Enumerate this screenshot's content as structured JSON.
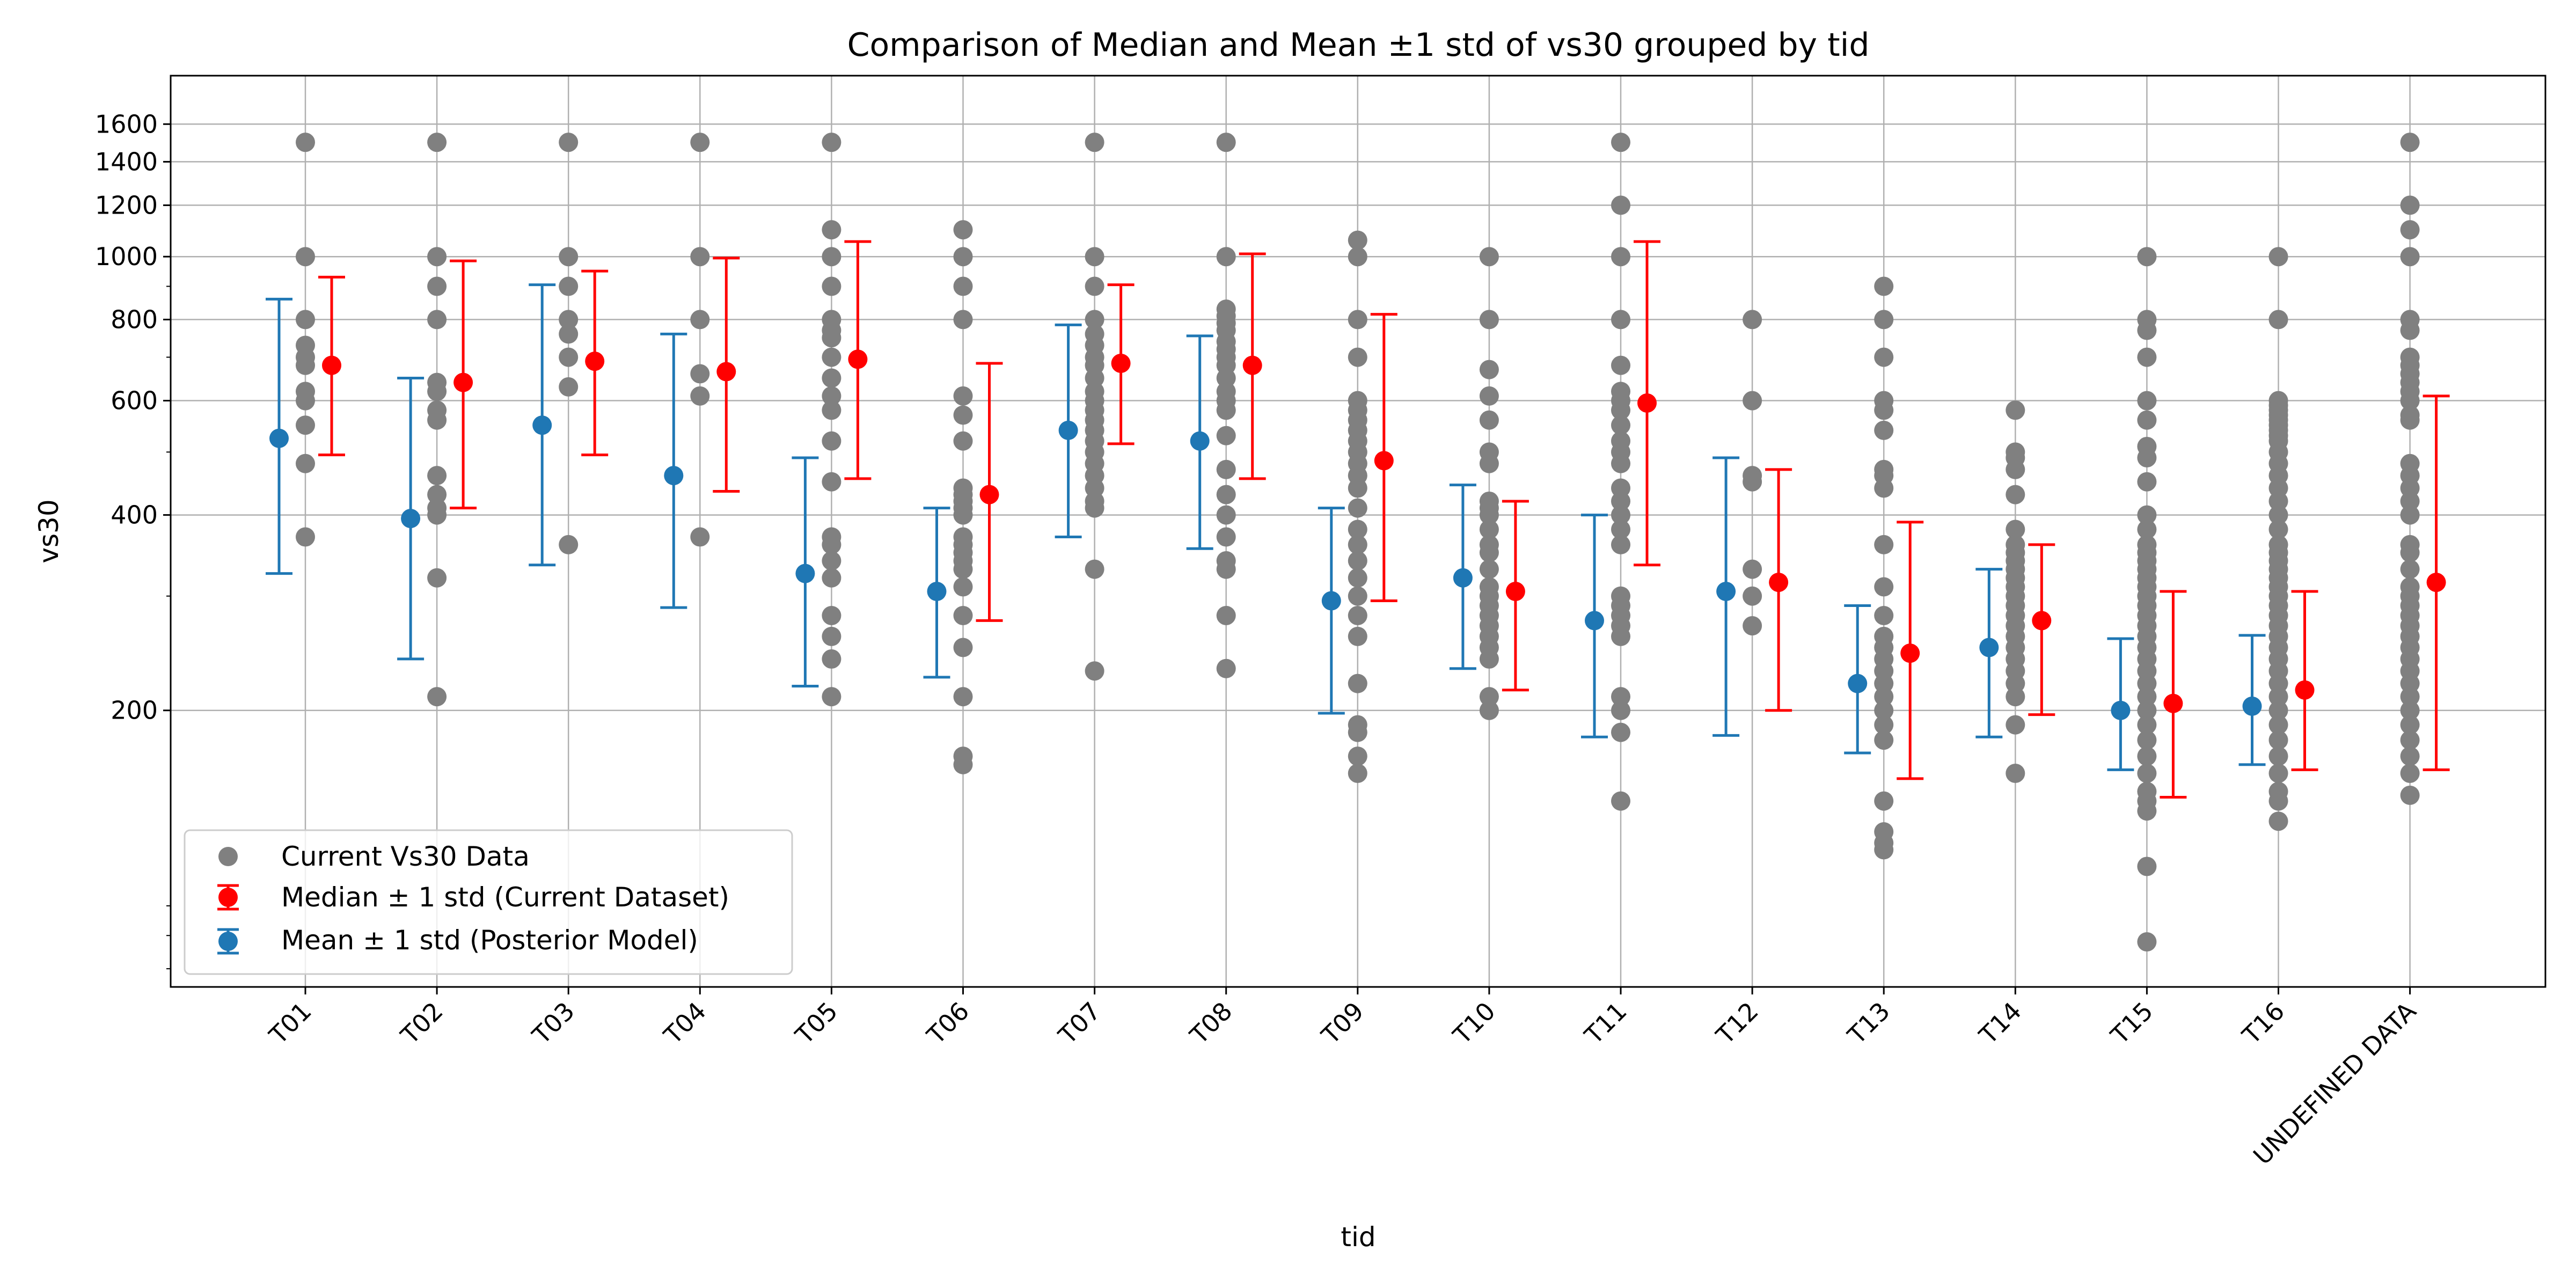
{
  "chart_data": {
    "type": "scatter",
    "title": "Comparison of Median and Mean ±1 std of vs30 grouped by tid",
    "xlabel": "tid",
    "ylabel": "vs30",
    "yscale": "log",
    "ylim": [
      75,
      1900
    ],
    "yticks": [
      200,
      400,
      600,
      800,
      1000,
      1200,
      1400,
      1600
    ],
    "grid": true,
    "legend_position": "lower-left",
    "categories": [
      "T01",
      "T02",
      "T03",
      "T04",
      "T05",
      "T06",
      "T07",
      "T08",
      "T09",
      "T10",
      "T11",
      "T12",
      "T13",
      "T14",
      "T15",
      "T16",
      "UNDEFINED DATA"
    ],
    "colors": {
      "data": "#808080",
      "median": "#ff0000",
      "mean": "#1f77b4"
    },
    "series": [
      {
        "name": "Current Vs30 Data",
        "kind": "scatter",
        "points": [
          [
            1500,
            1000,
            800,
            730,
            700,
            680,
            620,
            600,
            550,
            480,
            370
          ],
          [
            1500,
            1000,
            900,
            800,
            640,
            620,
            580,
            560,
            460,
            430,
            410,
            400,
            320,
            210
          ],
          [
            1500,
            1000,
            900,
            800,
            760,
            700,
            630,
            360
          ],
          [
            1500,
            1000,
            800,
            660,
            610,
            370
          ],
          [
            1500,
            1100,
            1000,
            900,
            800,
            770,
            750,
            700,
            650,
            610,
            580,
            520,
            450,
            370,
            360,
            340,
            320,
            280,
            260,
            240,
            210
          ],
          [
            1100,
            1000,
            900,
            800,
            610,
            570,
            520,
            440,
            430,
            420,
            410,
            400,
            370,
            360,
            350,
            340,
            330,
            310,
            280,
            250,
            210,
            170,
            165
          ],
          [
            1500,
            1000,
            900,
            800,
            760,
            730,
            700,
            680,
            650,
            620,
            600,
            580,
            560,
            540,
            520,
            500,
            480,
            460,
            440,
            420,
            410,
            330,
            230
          ],
          [
            1500,
            1000,
            830,
            810,
            790,
            770,
            740,
            720,
            700,
            680,
            650,
            620,
            600,
            580,
            530,
            470,
            430,
            400,
            370,
            340,
            330,
            280,
            232
          ],
          [
            1060,
            1000,
            800,
            700,
            600,
            580,
            560,
            540,
            520,
            500,
            480,
            460,
            440,
            410,
            380,
            360,
            340,
            320,
            300,
            280,
            260,
            220,
            190,
            185,
            170,
            160
          ],
          [
            1000,
            800,
            670,
            610,
            560,
            500,
            480,
            420,
            410,
            400,
            380,
            360,
            350,
            330,
            310,
            300,
            290,
            280,
            270,
            260,
            250,
            240,
            210,
            200
          ],
          [
            1500,
            1200,
            1000,
            800,
            680,
            620,
            600,
            580,
            550,
            520,
            500,
            480,
            440,
            420,
            400,
            380,
            360,
            300,
            290,
            280,
            270,
            260,
            210,
            200,
            185,
            145
          ],
          [
            800,
            600,
            460,
            450,
            330,
            300,
            270
          ],
          [
            900,
            800,
            700,
            600,
            580,
            540,
            470,
            460,
            440,
            360,
            310,
            280,
            260,
            250,
            240,
            230,
            220,
            210,
            200,
            190,
            180,
            145,
            130,
            125,
            122
          ],
          [
            580,
            500,
            490,
            470,
            430,
            380,
            360,
            350,
            340,
            330,
            320,
            310,
            300,
            290,
            280,
            270,
            260,
            250,
            240,
            230,
            220,
            210,
            190,
            160
          ],
          [
            1000,
            800,
            770,
            700,
            600,
            560,
            510,
            490,
            450,
            400,
            380,
            360,
            350,
            340,
            330,
            320,
            310,
            300,
            290,
            280,
            270,
            260,
            250,
            240,
            230,
            220,
            210,
            200,
            190,
            180,
            170,
            160,
            150,
            145,
            140,
            115,
            88
          ],
          [
            1000,
            800,
            600,
            590,
            580,
            570,
            560,
            550,
            540,
            530,
            520,
            500,
            480,
            460,
            440,
            420,
            400,
            380,
            360,
            350,
            340,
            330,
            320,
            310,
            300,
            290,
            280,
            270,
            260,
            250,
            240,
            230,
            220,
            210,
            200,
            190,
            180,
            170,
            160,
            150,
            145,
            135
          ],
          [
            1500,
            1200,
            1100,
            1000,
            800,
            770,
            700,
            680,
            660,
            640,
            620,
            600,
            570,
            560,
            480,
            460,
            440,
            420,
            400,
            360,
            350,
            330,
            310,
            300,
            290,
            280,
            270,
            260,
            250,
            240,
            230,
            220,
            210,
            200,
            190,
            180,
            170,
            160,
            148
          ]
        ]
      },
      {
        "name": "Median ± 1 std (Current Dataset)",
        "kind": "errorbar",
        "center": [
          680,
          640,
          690,
          665,
          695,
          430,
          685,
          680,
          485,
          305,
          595,
          315,
          245,
          275,
          205,
          215,
          315
        ],
        "low": [
          495,
          410,
          495,
          435,
          455,
          275,
          515,
          455,
          295,
          215,
          335,
          200,
          157,
          197,
          147,
          162,
          162
        ],
        "high": [
          930,
          985,
          950,
          995,
          1055,
          685,
          905,
          1010,
          815,
          420,
          1055,
          470,
          390,
          360,
          305,
          305,
          610
        ]
      },
      {
        "name": "Mean ± 1 std (Posterior Model)",
        "kind": "errorbar",
        "center": [
          525,
          395,
          550,
          460,
          325,
          305,
          540,
          520,
          295,
          320,
          275,
          305,
          220,
          250,
          200,
          203,
          null
        ],
        "low": [
          325,
          240,
          335,
          288,
          218,
          225,
          370,
          355,
          198,
          232,
          182,
          183,
          172,
          182,
          162,
          165,
          null
        ],
        "high": [
          860,
          650,
          905,
          760,
          490,
          410,
          785,
          755,
          410,
          445,
          400,
          490,
          290,
          330,
          258,
          261,
          null
        ]
      }
    ]
  }
}
